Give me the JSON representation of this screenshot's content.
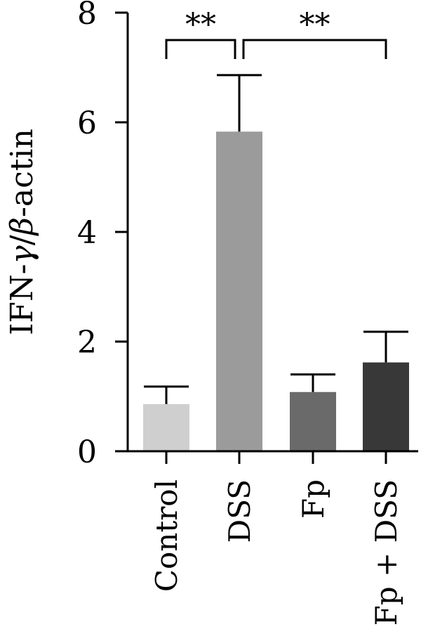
{
  "chart_data": {
    "type": "bar",
    "ylabel_parts": [
      "IFN-",
      "γ",
      "/",
      "β",
      "-actin"
    ],
    "categories": [
      "Control",
      "DSS",
      "Fp",
      "Fp + DSS"
    ],
    "values": [
      0.86,
      5.83,
      1.08,
      1.62
    ],
    "errors": [
      0.32,
      1.03,
      0.32,
      0.56
    ],
    "colors": [
      "#cfcfcf",
      "#9b9b9b",
      "#6a6a6a",
      "#383838"
    ],
    "ylim": [
      0,
      8
    ],
    "yticks": [
      "0",
      "2",
      "4",
      "6",
      "8"
    ],
    "grid": false,
    "significance": [
      {
        "from": 0,
        "to": 1,
        "label": "**"
      },
      {
        "from": 1,
        "to": 3,
        "label": "**"
      }
    ]
  }
}
